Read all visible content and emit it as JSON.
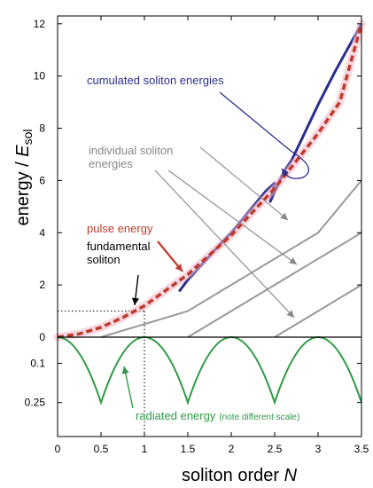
{
  "chart_data": {
    "type": "line",
    "xlabel": {
      "text": "soliton order ",
      "var": "N"
    },
    "ylabel": {
      "text": "energy / ",
      "var": "E",
      "sub": "sol"
    },
    "xlim": [
      0,
      3.5
    ],
    "ylim_top": [
      0,
      12.3
    ],
    "ylim_bottom": [
      0,
      0.38
    ],
    "x_ticks": [
      0,
      0.5,
      1,
      1.5,
      2,
      2.5,
      3,
      3.5
    ],
    "x_tick_labels": [
      "0",
      "0.5",
      "1",
      "1.5",
      "2",
      "2.5",
      "3",
      "3.5"
    ],
    "y_ticks_top": [
      0,
      2,
      4,
      6,
      8,
      10,
      12
    ],
    "y_tick_labels_top": [
      "0",
      "2",
      "4",
      "6",
      "8",
      "10",
      "12"
    ],
    "y_ticks_bottom": [
      0.1,
      0.25
    ],
    "y_tick_labels_bottom": [
      "0.1",
      "0.25"
    ],
    "reference_point": {
      "x": 1,
      "y": 1
    },
    "series": [
      {
        "key": "pulse",
        "color": "#c0392b",
        "x": [
          0,
          0.25,
          0.5,
          0.75,
          1,
          1.25,
          1.5,
          1.75,
          2,
          2.25,
          2.5,
          2.75,
          3,
          3.25,
          3.5
        ],
        "y": [
          0,
          0.125,
          0.375,
          0.75,
          1.2,
          1.8,
          2.4,
          3.15,
          3.9,
          4.8,
          5.7,
          6.75,
          7.8,
          9.0,
          12.0
        ]
      },
      {
        "key": "cumulated",
        "color": "#2b2f8c",
        "x": [
          1.4,
          1.5,
          1.6,
          1.8,
          2.0,
          2.2,
          2.4,
          2.5,
          2.45,
          2.6,
          2.7,
          2.8,
          3.0,
          3.2,
          3.5
        ],
        "y": [
          1.75,
          2.2,
          2.55,
          3.3,
          4.0,
          4.8,
          5.6,
          5.9,
          5.2,
          6.3,
          6.8,
          7.5,
          8.9,
          10.2,
          12.0
        ]
      },
      {
        "key": "individual_1",
        "color": "#999999",
        "x": [
          0.5,
          1.0,
          1.5,
          2.0,
          2.5,
          3.0,
          3.5
        ],
        "y": [
          0,
          0.5,
          1.0,
          2.0,
          3.0,
          4.0,
          6.0
        ]
      },
      {
        "key": "individual_2",
        "color": "#999999",
        "x": [
          1.5,
          2.0,
          2.5,
          3.0,
          3.5
        ],
        "y": [
          0,
          1.0,
          2.0,
          3.0,
          4.0
        ]
      },
      {
        "key": "individual_3",
        "color": "#999999",
        "x": [
          2.5,
          3.0,
          3.5
        ],
        "y": [
          0,
          1.0,
          2.0
        ]
      },
      {
        "key": "radiated",
        "color": "#2e9944",
        "x": [
          0,
          0.25,
          0.5,
          0.75,
          1.0,
          1.25,
          1.5,
          1.75,
          2.0,
          2.25,
          2.5,
          2.75,
          3.0,
          3.25,
          3.5
        ],
        "y": [
          0,
          0.115,
          0.25,
          0.115,
          0,
          0.115,
          0.25,
          0.115,
          0,
          0.115,
          0.25,
          0.115,
          0,
          0.115,
          0.25
        ]
      }
    ],
    "annotations": {
      "cumulated": "cumulated soliton energies",
      "individual": "individual soliton energies",
      "pulse": "pulse energy",
      "fundamental": "fundamental soliton",
      "radiated": "radiated energy",
      "radiated_note": "(note different scale)"
    }
  }
}
